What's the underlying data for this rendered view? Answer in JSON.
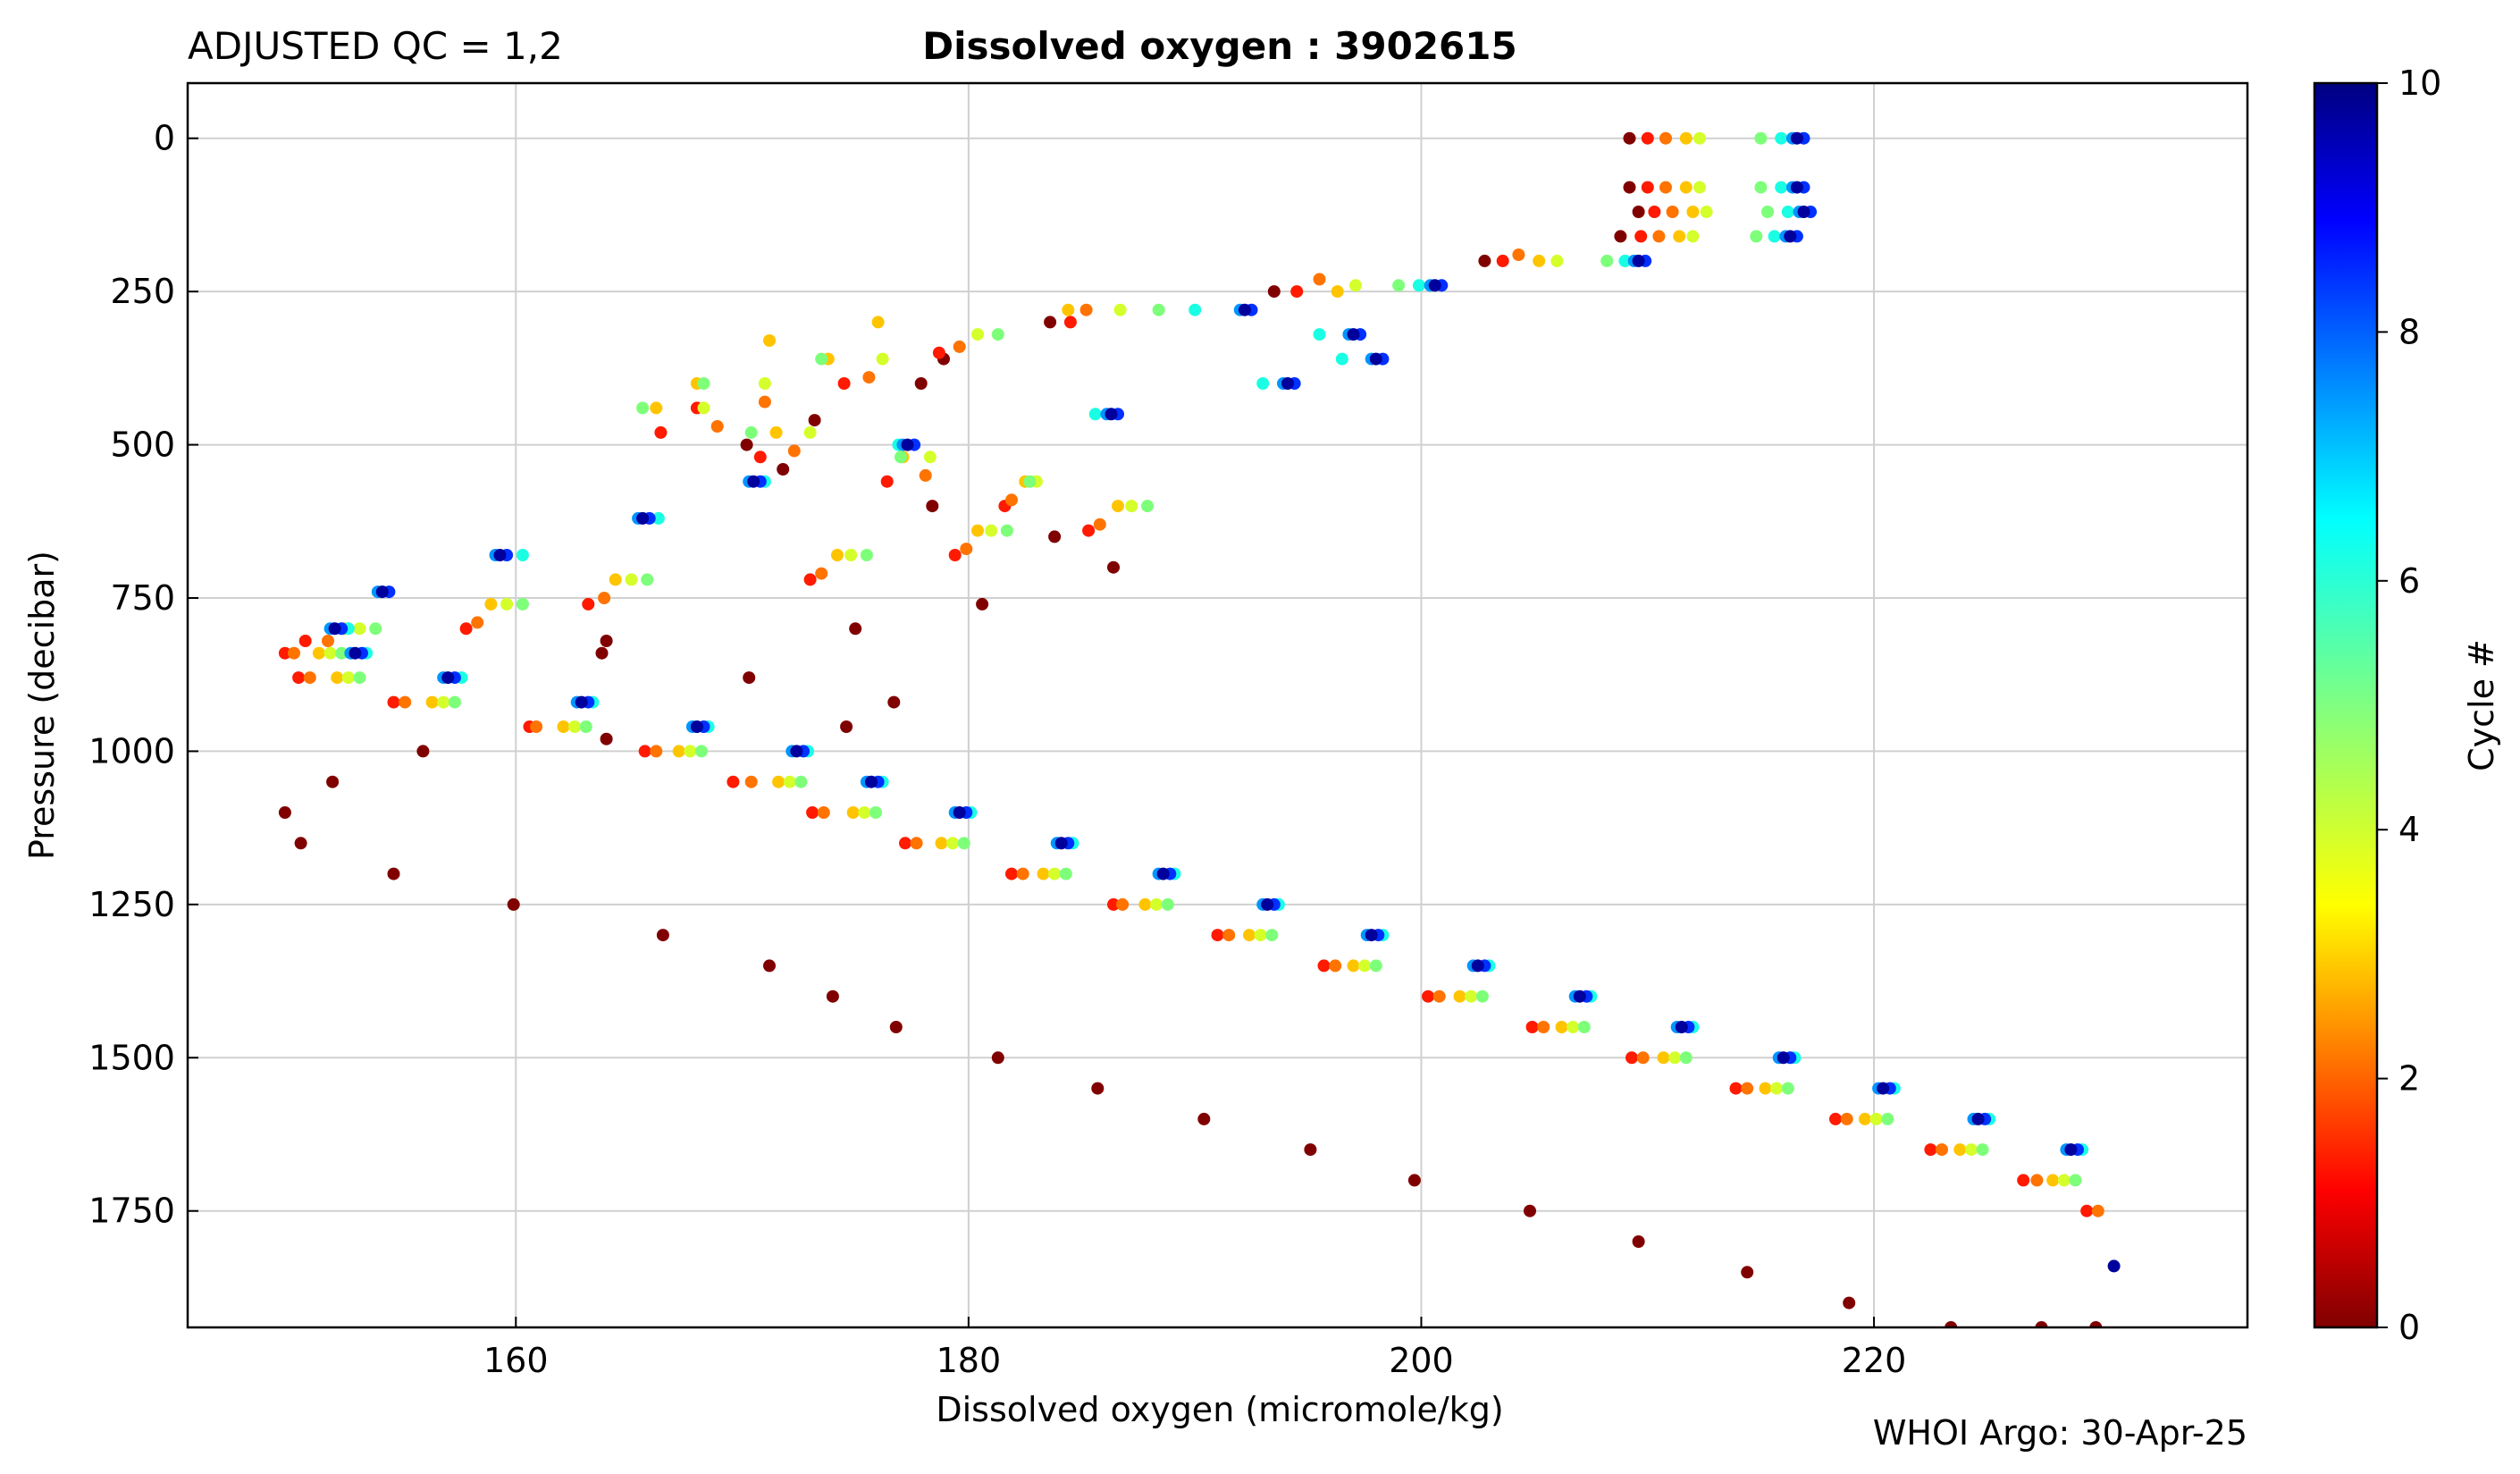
{
  "header": {
    "left_label": "ADJUSTED QC = 1,2",
    "title": "Dissolved oxygen : 3902615"
  },
  "footer": {
    "credit": "WHOI Argo: 30-Apr-25"
  },
  "chart_data": {
    "type": "scatter",
    "title": "Dissolved oxygen : 3902615",
    "xlabel": "Dissolved oxygen  (micromole/kg)",
    "ylabel": "Pressure  (decibar)",
    "xlim": [
      145.5,
      236.5
    ],
    "ylim": [
      1940,
      -90
    ],
    "y_inverted": true,
    "grid": true,
    "xticks": [
      160,
      180,
      200,
      220
    ],
    "yticks": [
      0,
      250,
      500,
      750,
      1000,
      1250,
      1500,
      1750
    ],
    "colorbar": {
      "label": "Cycle #",
      "colormap": "jet",
      "range": [
        0,
        10
      ],
      "ticks": [
        0,
        2,
        4,
        6,
        8,
        10
      ]
    },
    "series": [
      {
        "cycle": 0,
        "color": "#800000",
        "x": [
          209.2,
          209.2,
          209.6,
          208.8,
          202.8,
          193.5,
          183.6,
          178.9,
          177.9,
          173.2,
          170.2,
          171.8,
          178.4,
          183.8,
          186.4,
          180.6,
          175.0,
          164.0,
          163.8,
          170.3,
          176.7,
          174.6,
          164.0,
          155.9,
          151.9,
          149.8,
          150.5,
          154.6,
          159.9,
          166.5,
          171.2,
          174.0,
          176.8,
          181.3,
          185.7,
          190.4,
          195.1,
          199.7,
          204.8,
          209.6,
          214.4,
          218.9,
          223.4,
          227.4,
          229.8
        ],
        "y": [
          0,
          80,
          120,
          160,
          200,
          250,
          300,
          360,
          400,
          460,
          500,
          540,
          600,
          650,
          700,
          760,
          800,
          820,
          840,
          880,
          920,
          960,
          980,
          1000,
          1050,
          1100,
          1150,
          1200,
          1250,
          1300,
          1350,
          1400,
          1450,
          1500,
          1550,
          1600,
          1650,
          1700,
          1750,
          1800,
          1850,
          1900,
          1940,
          1940,
          1940
        ]
      },
      {
        "cycle": 1,
        "color": "#ff1a00",
        "x": [
          210.0,
          210.0,
          210.3,
          209.7,
          203.6,
          194.5,
          184.5,
          178.7,
          174.5,
          168.0,
          166.4,
          170.8,
          176.4,
          181.6,
          185.3,
          179.4,
          173.0,
          163.2,
          157.8,
          150.7,
          149.8,
          150.4,
          154.6,
          160.6,
          165.7,
          169.6,
          173.1,
          177.2,
          181.9,
          186.4,
          191.0,
          195.7,
          200.3,
          204.9,
          209.3,
          213.9,
          218.3,
          222.5,
          226.6,
          229.4
        ],
        "y": [
          0,
          80,
          120,
          160,
          200,
          250,
          300,
          350,
          400,
          440,
          480,
          520,
          560,
          600,
          640,
          680,
          720,
          760,
          800,
          820,
          840,
          880,
          920,
          960,
          1000,
          1050,
          1100,
          1150,
          1200,
          1250,
          1300,
          1350,
          1400,
          1450,
          1500,
          1550,
          1600,
          1650,
          1700,
          1750
        ]
      },
      {
        "cycle": 2,
        "color": "#ff7300",
        "x": [
          210.8,
          210.8,
          211.1,
          210.5,
          204.3,
          195.5,
          185.2,
          179.6,
          175.6,
          171.0,
          168.9,
          172.3,
          178.1,
          181.9,
          185.8,
          179.9,
          173.5,
          163.9,
          158.3,
          151.7,
          150.2,
          150.9,
          155.1,
          160.9,
          166.2,
          170.4,
          173.6,
          177.7,
          182.4,
          186.8,
          191.5,
          196.2,
          200.8,
          205.4,
          209.8,
          214.4,
          218.8,
          223.0,
          227.2,
          229.9
        ],
        "y": [
          0,
          80,
          120,
          160,
          190,
          230,
          280,
          340,
          390,
          430,
          470,
          510,
          550,
          590,
          630,
          670,
          710,
          750,
          790,
          820,
          840,
          880,
          920,
          960,
          1000,
          1050,
          1100,
          1150,
          1200,
          1250,
          1300,
          1350,
          1400,
          1450,
          1500,
          1550,
          1600,
          1650,
          1700,
          1750
        ]
      },
      {
        "cycle": 3,
        "color": "#ffc400",
        "x": [
          211.7,
          211.7,
          212.0,
          211.4,
          205.2,
          196.3,
          184.4,
          176.0,
          171.2,
          173.8,
          168.0,
          166.2,
          171.5,
          177.1,
          182.5,
          186.6,
          180.4,
          174.2,
          164.4,
          158.9,
          152.4,
          151.3,
          152.1,
          156.3,
          162.1,
          167.2,
          171.6,
          174.9,
          178.8,
          183.3,
          187.8,
          192.4,
          197.0,
          201.7,
          206.2,
          210.7,
          215.2,
          219.6,
          223.8,
          227.9
        ],
        "y": [
          0,
          80,
          120,
          160,
          200,
          250,
          280,
          300,
          330,
          360,
          400,
          440,
          480,
          520,
          560,
          600,
          640,
          680,
          720,
          760,
          800,
          840,
          880,
          920,
          960,
          1000,
          1050,
          1100,
          1150,
          1200,
          1250,
          1300,
          1350,
          1400,
          1450,
          1500,
          1550,
          1600,
          1650,
          1700
        ]
      },
      {
        "cycle": 4,
        "color": "#d4ff2b",
        "x": [
          212.3,
          212.3,
          212.6,
          212.0,
          206.0,
          197.1,
          186.7,
          180.4,
          176.2,
          171.0,
          168.3,
          173.0,
          178.3,
          183.0,
          187.2,
          181.0,
          174.8,
          165.1,
          159.6,
          153.1,
          151.8,
          152.6,
          156.8,
          162.6,
          167.7,
          172.1,
          175.4,
          179.3,
          183.8,
          188.3,
          192.9,
          197.5,
          202.2,
          206.7,
          211.2,
          215.7,
          220.1,
          224.3,
          228.4
        ],
        "y": [
          0,
          80,
          120,
          160,
          200,
          240,
          280,
          320,
          360,
          400,
          440,
          480,
          520,
          560,
          600,
          640,
          680,
          720,
          760,
          800,
          840,
          880,
          920,
          960,
          1000,
          1050,
          1100,
          1150,
          1200,
          1250,
          1300,
          1350,
          1400,
          1450,
          1500,
          1550,
          1600,
          1650,
          1700
        ]
      },
      {
        "cycle": 5,
        "color": "#7dff7a",
        "x": [
          215.0,
          215.0,
          215.3,
          214.8,
          208.2,
          199.0,
          188.4,
          181.3,
          173.5,
          168.3,
          165.6,
          170.4,
          177.0,
          182.7,
          187.9,
          181.7,
          175.5,
          165.8,
          160.3,
          153.8,
          152.3,
          153.1,
          157.3,
          163.1,
          168.2,
          172.6,
          175.9,
          179.8,
          184.3,
          188.8,
          193.4,
          198.0,
          202.7,
          207.2,
          211.7,
          216.2,
          220.6,
          224.8,
          228.9
        ],
        "y": [
          0,
          80,
          120,
          160,
          200,
          240,
          280,
          320,
          360,
          400,
          440,
          480,
          520,
          560,
          600,
          640,
          680,
          720,
          760,
          800,
          840,
          880,
          920,
          960,
          1000,
          1050,
          1100,
          1150,
          1200,
          1250,
          1300,
          1350,
          1400,
          1450,
          1500,
          1550,
          1600,
          1650,
          1700
        ]
      },
      {
        "cycle": 6,
        "color": "#1affe3",
        "x": [
          215.9,
          215.9,
          216.2,
          215.6,
          209.0,
          199.9,
          190.0,
          195.5,
          196.5,
          193.0,
          185.6,
          176.9,
          171.0,
          166.3,
          160.3,
          154.1,
          152.6,
          153.4,
          157.6,
          163.4,
          168.5,
          172.9,
          176.2,
          180.1,
          184.6,
          189.1,
          193.7,
          198.3,
          203.0,
          207.5,
          212.0,
          216.5,
          220.9,
          225.1,
          229.2
        ],
        "y": [
          0,
          80,
          120,
          160,
          200,
          240,
          280,
          320,
          360,
          400,
          450,
          500,
          560,
          620,
          680,
          740,
          800,
          840,
          880,
          920,
          960,
          1000,
          1050,
          1100,
          1150,
          1200,
          1250,
          1300,
          1350,
          1400,
          1450,
          1500,
          1550,
          1600,
          1650
        ]
      },
      {
        "cycle": 7,
        "color": "#0095ff",
        "x": [
          216.4,
          216.4,
          216.7,
          216.1,
          209.4,
          200.4,
          192.0,
          196.8,
          197.8,
          193.9,
          186.1,
          177.1,
          170.3,
          165.4,
          159.1,
          153.9,
          151.8,
          152.7,
          156.8,
          162.7,
          167.8,
          172.2,
          175.5,
          179.4,
          183.9,
          188.4,
          193.0,
          197.6,
          202.3,
          206.8,
          211.3,
          215.8,
          220.2,
          224.4,
          228.5
        ],
        "y": [
          0,
          80,
          120,
          160,
          200,
          240,
          280,
          320,
          360,
          400,
          450,
          500,
          560,
          620,
          680,
          740,
          800,
          840,
          880,
          920,
          960,
          1000,
          1050,
          1100,
          1150,
          1200,
          1250,
          1300,
          1350,
          1400,
          1450,
          1500,
          1550,
          1600,
          1650
        ]
      },
      {
        "cycle": 8,
        "color": "#0030ff",
        "x": [
          216.9,
          216.9,
          217.2,
          216.6,
          209.9,
          200.9,
          192.5,
          197.3,
          198.3,
          194.4,
          186.6,
          177.6,
          170.8,
          165.9,
          159.6,
          154.4,
          152.3,
          153.2,
          157.3,
          163.2,
          168.3,
          172.7,
          176.0,
          179.9,
          184.4,
          188.9,
          193.5,
          198.1,
          202.8,
          207.3,
          211.8,
          216.3,
          220.7,
          224.9,
          229.0
        ],
        "y": [
          0,
          80,
          120,
          160,
          200,
          240,
          280,
          320,
          360,
          400,
          450,
          500,
          560,
          620,
          680,
          740,
          800,
          840,
          880,
          920,
          960,
          1000,
          1050,
          1100,
          1150,
          1200,
          1250,
          1300,
          1350,
          1400,
          1450,
          1500,
          1550,
          1600,
          1650
        ]
      },
      {
        "cycle": 9,
        "color": "#00009c",
        "x": [
          216.6,
          216.6,
          216.9,
          216.3,
          209.6,
          200.6,
          192.2,
          197.0,
          198.0,
          194.1,
          186.3,
          177.3,
          170.5,
          165.6,
          159.3,
          154.1,
          152.0,
          152.9,
          157.0,
          162.9,
          168.0,
          172.4,
          175.7,
          179.6,
          184.1,
          188.6,
          193.2,
          197.8,
          202.5,
          207.0,
          211.5,
          216.0,
          220.4,
          224.6,
          228.7,
          230.6
        ],
        "y": [
          0,
          80,
          120,
          160,
          200,
          240,
          280,
          320,
          360,
          400,
          450,
          500,
          560,
          620,
          680,
          740,
          800,
          840,
          880,
          920,
          960,
          1000,
          1050,
          1100,
          1150,
          1200,
          1250,
          1300,
          1350,
          1400,
          1450,
          1500,
          1550,
          1600,
          1650,
          1840
        ]
      }
    ]
  }
}
